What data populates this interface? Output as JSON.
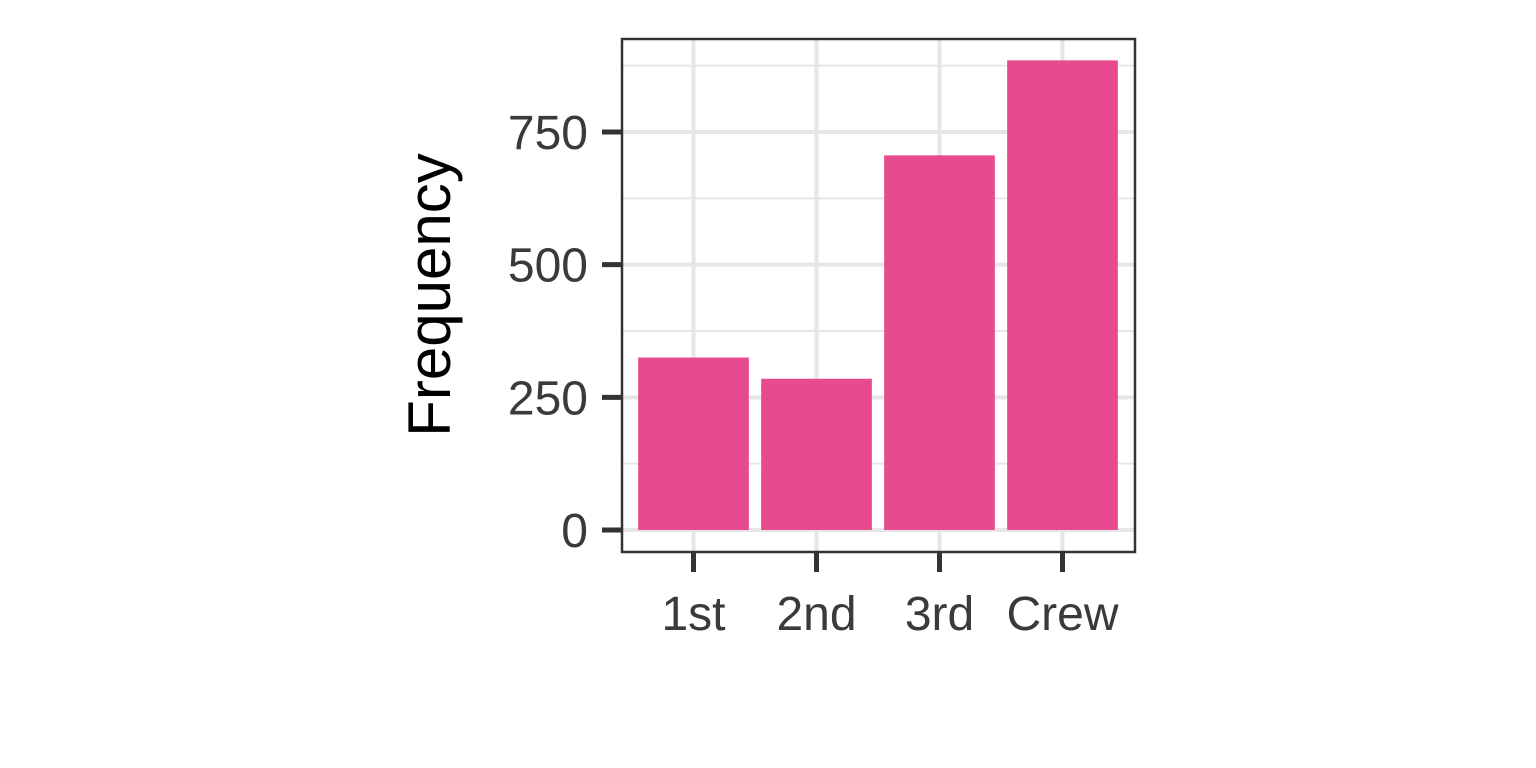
{
  "chart_data": {
    "type": "bar",
    "title": "",
    "xlabel": "",
    "ylabel": "Frequency",
    "categories": [
      "1st",
      "2nd",
      "3rd",
      "Crew"
    ],
    "values": [
      325,
      285,
      706,
      885
    ],
    "ylim": [
      0,
      885
    ],
    "yticks": [
      0,
      250,
      500,
      750
    ],
    "ytick_labels": [
      "0",
      "250",
      "500",
      "750"
    ],
    "grid": true,
    "legend": "none",
    "colors": {
      "bar": "#e84a8f",
      "grid": "#e6e6e6",
      "panel_border": "#333333",
      "tick_mark": "#333333"
    }
  }
}
